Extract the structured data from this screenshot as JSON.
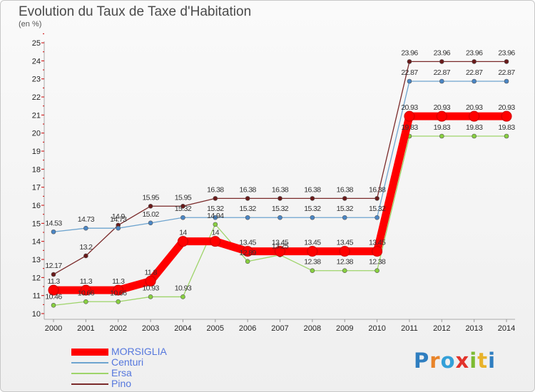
{
  "title": "Evolution du Taux de Taxe d'Habitation",
  "unit_label": "(en %)",
  "logo": {
    "text": "Proxiti",
    "letter_colors": [
      "#2f7ec0",
      "#e8842a",
      "#34a0d8",
      "#e2332b",
      "#7dbb32",
      "#e8b22a",
      "#2f7ec0"
    ]
  },
  "chart_data": {
    "type": "line",
    "x": [
      "2000",
      "2001",
      "2002",
      "2003",
      "2004",
      "2005",
      "2006",
      "2007",
      "2008",
      "2009",
      "2010",
      "2011",
      "2012",
      "2013",
      "2014"
    ],
    "ylim": [
      10,
      25
    ],
    "yticks": [
      10,
      11,
      12,
      13,
      14,
      15,
      16,
      17,
      18,
      19,
      20,
      21,
      22,
      23,
      24,
      25
    ],
    "grid": false,
    "legend_position": "bottom-left",
    "series": [
      {
        "name": "MORSIGLIA",
        "color": "#ff0000",
        "legend_text_color": "#5577dd",
        "marker_color": "#ff0000",
        "values": [
          11.3,
          11.3,
          11.3,
          11.8,
          14,
          14,
          13.45,
          13.45,
          13.45,
          13.45,
          13.45,
          20.93,
          20.93,
          20.93,
          20.93
        ],
        "labels": [
          "11.3",
          "11.3",
          "11.3",
          "11.8",
          "14",
          "14",
          "13.45",
          "13.45",
          "13.45",
          "13.45",
          "13.45",
          "20.93",
          "20.93",
          "20.93",
          "20.93"
        ]
      },
      {
        "name": "Centuri",
        "color": "#6ea4cf",
        "legend_text_color": "#5577dd",
        "marker_color": "#4a86c5",
        "values": [
          14.53,
          14.73,
          14.73,
          15.02,
          15.32,
          15.32,
          15.32,
          15.32,
          15.32,
          15.32,
          15.32,
          22.87,
          22.87,
          22.87,
          22.87
        ],
        "labels": [
          "14.53",
          "14.73",
          "14.73",
          "15.02",
          "15.32",
          "15.32",
          "15.32",
          "15.32",
          "15.32",
          "15.32",
          "15.32",
          "22.87",
          "22.87",
          "22.87",
          "22.87"
        ]
      },
      {
        "name": "Ersa",
        "color": "#9ed46a",
        "legend_text_color": "#5577dd",
        "marker_color": "#88d040",
        "values": [
          10.46,
          10.66,
          10.66,
          10.93,
          10.93,
          14.94,
          12.89,
          13.25,
          12.38,
          12.38,
          12.38,
          19.83,
          19.83,
          19.83,
          19.83
        ],
        "labels": [
          "10.46",
          "10.66",
          "10.66",
          "10.93",
          "10.93",
          "14.94",
          "12.89",
          "13.25",
          "12.38",
          "12.38",
          "12.38",
          "19.83",
          "19.83",
          "19.83",
          "19.83"
        ]
      },
      {
        "name": "Pino",
        "color": "#7a2a2a",
        "legend_text_color": "#5577dd",
        "marker_color": "#6a1a1a",
        "values": [
          12.17,
          13.2,
          14.9,
          15.95,
          15.95,
          16.38,
          16.38,
          16.38,
          16.38,
          16.38,
          16.38,
          23.96,
          23.96,
          23.96,
          23.96
        ],
        "labels": [
          "12.17",
          "13.2",
          "14.9",
          "15.95",
          "15.95",
          "16.38",
          "16.38",
          "16.38",
          "16.38",
          "16.38",
          "16.38",
          "23.96",
          "23.96",
          "23.96",
          "23.96"
        ]
      }
    ]
  }
}
